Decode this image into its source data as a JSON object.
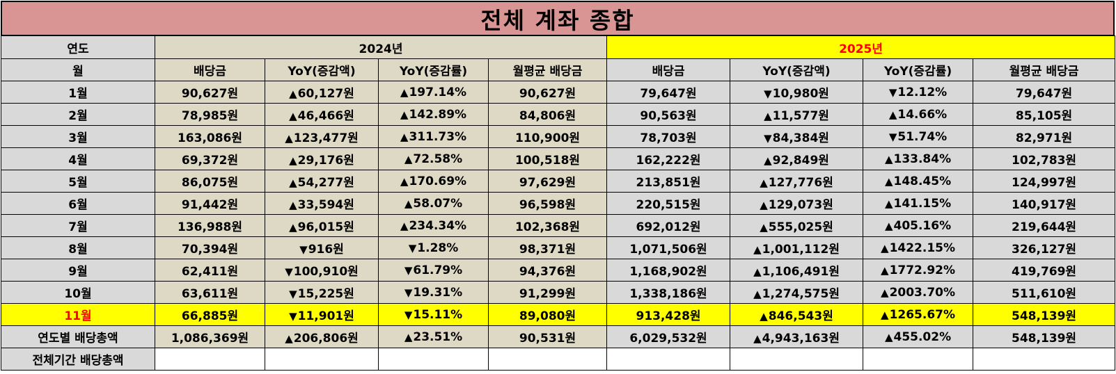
{
  "title": "전체 계좌 종합",
  "header": {
    "year_label": "연도",
    "month_label": "월",
    "year_2024": "2024년",
    "year_2025": "2025년",
    "columns": [
      "배당금",
      "YoY(증감액)",
      "YoY(증감률)",
      "월평균 배당금"
    ]
  },
  "rows": [
    {
      "month": "1월",
      "y2024": {
        "div": "90,627원",
        "yoy_amt": {
          "dir": "up",
          "text": "60,127원"
        },
        "yoy_rate": {
          "dir": "up",
          "text": "197.14%"
        },
        "avg": "90,627원"
      },
      "y2025": {
        "div": "79,647원",
        "yoy_amt": {
          "dir": "down",
          "text": "10,980원"
        },
        "yoy_rate": {
          "dir": "down",
          "text": "12.12%"
        },
        "avg": "79,647원"
      }
    },
    {
      "month": "2월",
      "y2024": {
        "div": "78,985원",
        "yoy_amt": {
          "dir": "up",
          "text": "46,466원"
        },
        "yoy_rate": {
          "dir": "up",
          "text": "142.89%"
        },
        "avg": "84,806원"
      },
      "y2025": {
        "div": "90,563원",
        "yoy_amt": {
          "dir": "up",
          "text": "11,577원"
        },
        "yoy_rate": {
          "dir": "up",
          "text": "14.66%"
        },
        "avg": "85,105원"
      }
    },
    {
      "month": "3월",
      "y2024": {
        "div": "163,086원",
        "yoy_amt": {
          "dir": "up",
          "text": "123,477원"
        },
        "yoy_rate": {
          "dir": "up",
          "text": "311.73%"
        },
        "avg": "110,900원"
      },
      "y2025": {
        "div": "78,703원",
        "yoy_amt": {
          "dir": "down",
          "text": "84,384원"
        },
        "yoy_rate": {
          "dir": "down",
          "text": "51.74%"
        },
        "avg": "82,971원"
      }
    },
    {
      "month": "4월",
      "y2024": {
        "div": "69,372원",
        "yoy_amt": {
          "dir": "up",
          "text": "29,176원"
        },
        "yoy_rate": {
          "dir": "up",
          "text": "72.58%"
        },
        "avg": "100,518원"
      },
      "y2025": {
        "div": "162,222원",
        "yoy_amt": {
          "dir": "up",
          "text": "92,849원"
        },
        "yoy_rate": {
          "dir": "up",
          "text": "133.84%"
        },
        "avg": "102,783원"
      }
    },
    {
      "month": "5월",
      "y2024": {
        "div": "86,075원",
        "yoy_amt": {
          "dir": "up",
          "text": "54,277원"
        },
        "yoy_rate": {
          "dir": "up",
          "text": "170.69%"
        },
        "avg": "97,629원"
      },
      "y2025": {
        "div": "213,851원",
        "yoy_amt": {
          "dir": "up",
          "text": "127,776원"
        },
        "yoy_rate": {
          "dir": "up",
          "text": "148.45%"
        },
        "avg": "124,997원"
      }
    },
    {
      "month": "6월",
      "y2024": {
        "div": "91,442원",
        "yoy_amt": {
          "dir": "up",
          "text": "33,594원"
        },
        "yoy_rate": {
          "dir": "up",
          "text": "58.07%"
        },
        "avg": "96,598원"
      },
      "y2025": {
        "div": "220,515원",
        "yoy_amt": {
          "dir": "up",
          "text": "129,073원"
        },
        "yoy_rate": {
          "dir": "up",
          "text": "141.15%"
        },
        "avg": "140,917원"
      }
    },
    {
      "month": "7월",
      "y2024": {
        "div": "136,988원",
        "yoy_amt": {
          "dir": "up",
          "text": "96,015원"
        },
        "yoy_rate": {
          "dir": "up",
          "text": "234.34%"
        },
        "avg": "102,368원"
      },
      "y2025": {
        "div": "692,012원",
        "yoy_amt": {
          "dir": "up",
          "text": "555,025원"
        },
        "yoy_rate": {
          "dir": "up",
          "text": "405.16%"
        },
        "avg": "219,644원"
      }
    },
    {
      "month": "8월",
      "y2024": {
        "div": "70,394원",
        "yoy_amt": {
          "dir": "down",
          "text": "916원"
        },
        "yoy_rate": {
          "dir": "down",
          "text": "1.28%"
        },
        "avg": "98,371원"
      },
      "y2025": {
        "div": "1,071,506원",
        "yoy_amt": {
          "dir": "up",
          "text": "1,001,112원"
        },
        "yoy_rate": {
          "dir": "up",
          "text": "1422.15%"
        },
        "avg": "326,127원"
      }
    },
    {
      "month": "9월",
      "y2024": {
        "div": "62,411원",
        "yoy_amt": {
          "dir": "down",
          "text": "100,910원"
        },
        "yoy_rate": {
          "dir": "down",
          "text": "61.79%"
        },
        "avg": "94,376원"
      },
      "y2025": {
        "div": "1,168,902원",
        "yoy_amt": {
          "dir": "up",
          "text": "1,106,491원"
        },
        "yoy_rate": {
          "dir": "up",
          "text": "1772.92%"
        },
        "avg": "419,769원"
      }
    },
    {
      "month": "10월",
      "y2024": {
        "div": "63,611원",
        "yoy_amt": {
          "dir": "down",
          "text": "15,225원"
        },
        "yoy_rate": {
          "dir": "down",
          "text": "19.31%"
        },
        "avg": "91,299원"
      },
      "y2025": {
        "div": "1,338,186원",
        "yoy_amt": {
          "dir": "up",
          "text": "1,274,575원"
        },
        "yoy_rate": {
          "dir": "up",
          "text": "2003.70%"
        },
        "avg": "511,610원"
      }
    },
    {
      "month": "11월",
      "highlight": true,
      "y2024": {
        "div": "66,885원",
        "yoy_amt": {
          "dir": "down",
          "text": "11,901원"
        },
        "yoy_rate": {
          "dir": "down",
          "text": "15.11%"
        },
        "avg": "89,080원"
      },
      "y2025": {
        "div": "913,428원",
        "yoy_amt": {
          "dir": "up",
          "text": "846,543원"
        },
        "yoy_rate": {
          "dir": "up",
          "text": "1265.67%"
        },
        "avg": "548,139원"
      }
    }
  ],
  "annual_total": {
    "label": "연도별 배당총액",
    "y2024": {
      "div": "1,086,369원",
      "yoy_amt": {
        "dir": "up",
        "text": "206,806원"
      },
      "yoy_rate": {
        "dir": "up",
        "text": "23.51%"
      },
      "avg": "90,531원"
    },
    "y2025": {
      "div": "6,029,532원",
      "yoy_amt": {
        "dir": "up",
        "text": "4,943,163원"
      },
      "yoy_rate": {
        "dir": "up",
        "text": "455.02%"
      },
      "avg": "548,139원"
    }
  },
  "period_total": {
    "label": "전체기간 배당총액"
  },
  "icons": {
    "up": "triangle-up-icon",
    "down": "triangle-down-icon"
  },
  "colors": {
    "title_bg": "#d99594",
    "col2024_bg": "#ddd9c4",
    "gray_bg": "#d9d9d9",
    "highlight": "#ffff00",
    "up": "#ff0000",
    "down": "#0000ff"
  }
}
